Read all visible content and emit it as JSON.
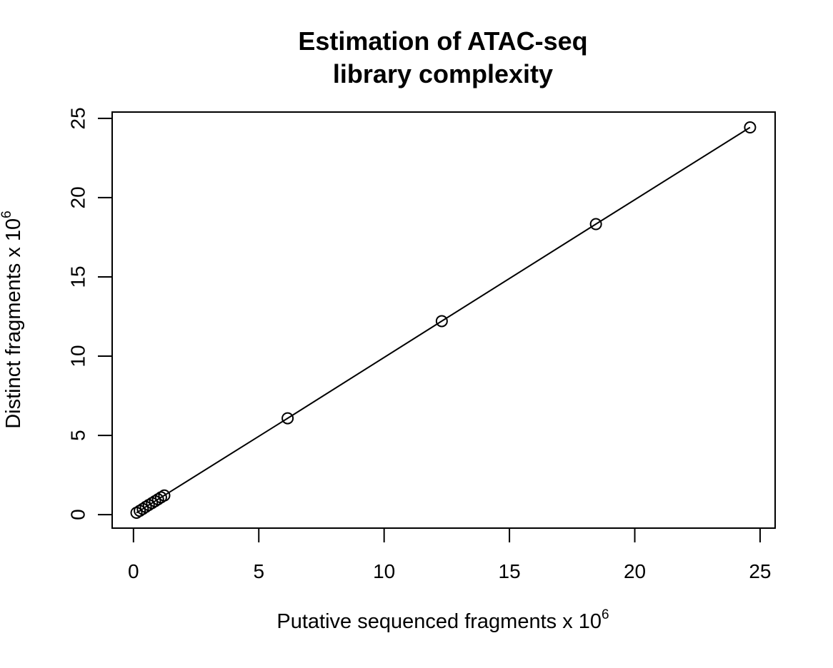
{
  "chart_data": {
    "type": "line",
    "title_line1": "Estimation of ATAC-seq",
    "title_line2": "library complexity",
    "xlabel": "Putative sequenced fragments x 10",
    "xlabel_exponent": "6",
    "ylabel": "Distinct fragments x 10",
    "ylabel_exponent": "6",
    "xlim": [
      -0.85,
      25.6
    ],
    "ylim": [
      -0.85,
      25.4
    ],
    "xticks": [
      0,
      5,
      10,
      15,
      20,
      25
    ],
    "yticks": [
      0,
      5,
      10,
      15,
      20,
      25
    ],
    "xtick_labels": [
      "0",
      "5",
      "10",
      "15",
      "20",
      "25"
    ],
    "ytick_labels": [
      "0",
      "5",
      "10",
      "15",
      "20",
      "25"
    ],
    "grid": false,
    "marker": "open-circle",
    "series": [
      {
        "x": [
          0.12,
          0.25,
          0.37,
          0.49,
          0.61,
          0.74,
          0.86,
          0.98,
          1.1,
          1.23,
          6.15,
          12.3,
          18.45,
          24.6
        ],
        "y": [
          0.12,
          0.24,
          0.36,
          0.49,
          0.61,
          0.73,
          0.85,
          0.97,
          1.09,
          1.21,
          6.08,
          12.21,
          18.33,
          24.43
        ]
      }
    ]
  }
}
